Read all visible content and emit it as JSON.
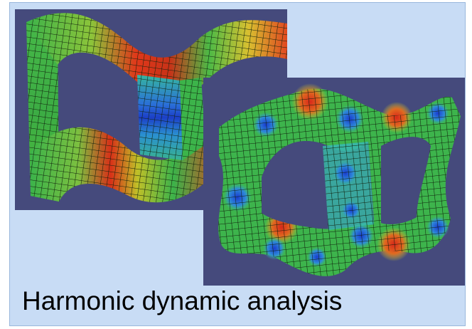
{
  "caption": "Harmonic dynamic analysis",
  "images": [
    {
      "name": "mode-shape-1",
      "subject": "FEA mesh of closed-loop chain frame, first harmonic mode"
    },
    {
      "name": "mode-shape-2",
      "subject": "FEA mesh of closed-loop chain frame, second harmonic mode"
    }
  ],
  "colors": {
    "panel_background": "#c8dcf5",
    "viewport_background": "#454a7c",
    "high_displacement": "#d92a10",
    "mid_displacement": "#2cb04a",
    "low_displacement": "#1c4fd8"
  }
}
